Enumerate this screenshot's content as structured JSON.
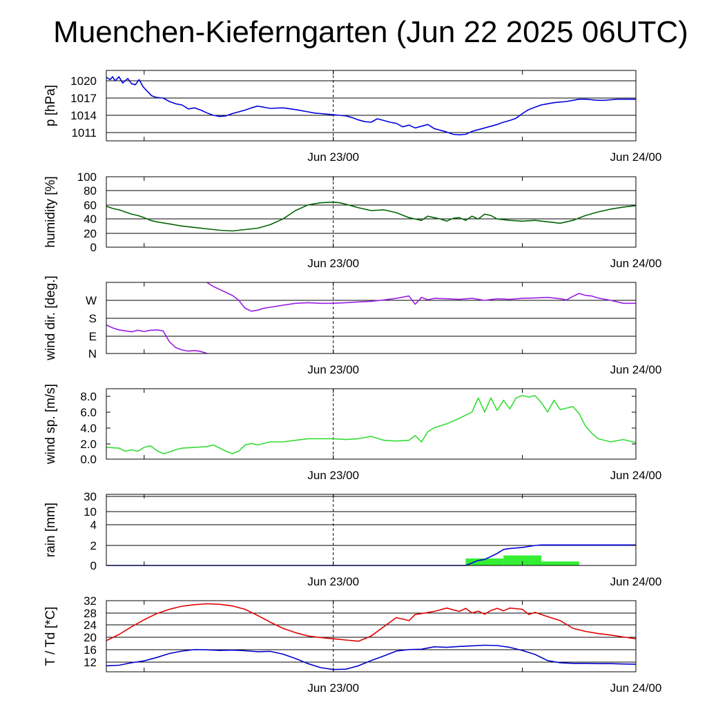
{
  "title": "Muenchen-Kieferngarten (Jun 22 2025 06UTC)",
  "colors": {
    "pressure": "#0000dd",
    "humidity": "#006400",
    "wind_dir": "#9a1ae6",
    "wind_speed": "#33dd33",
    "rain_bars": "#33ee33",
    "rain_cum": "#0000dd",
    "temp": "#e00000",
    "dewpoint": "#0000cc"
  },
  "chart_data": [
    {
      "type": "line",
      "ylabel": "p [hPa]",
      "yticks": [
        "1011",
        "1014",
        "1017",
        "1020"
      ],
      "ylim": [
        1009.6,
        1021.8
      ],
      "grid": "horizontal",
      "xticks": [
        "Jun 23/00",
        "Jun 24/00"
      ],
      "xlim_hours": [
        0,
        42
      ],
      "series": [
        {
          "x": [
            0,
            0.3,
            0.5,
            0.7,
            1,
            1.3,
            1.7,
            2,
            2.3,
            2.6,
            2.9,
            3.2,
            3.6,
            4,
            4.5,
            5,
            5.5,
            6,
            6.5,
            7,
            7.5,
            8,
            8.5,
            9,
            9.5,
            10,
            10.5,
            11,
            11.5,
            12,
            13,
            14,
            15,
            16,
            16.5,
            17,
            17.5,
            18,
            18.5,
            19,
            19.5,
            20,
            20.5,
            21,
            21.5,
            22,
            22.5,
            23,
            23.5,
            24,
            24.5,
            25,
            25.5,
            26,
            26.5,
            27,
            27.5,
            28,
            28.5,
            29,
            29.5,
            30,
            30.5,
            31,
            31.5,
            32,
            32.5,
            33,
            33.5,
            34,
            34.5,
            35,
            35.5,
            36,
            36.5,
            37,
            37.5,
            38,
            38.5,
            39,
            39.5,
            40,
            40.5,
            41,
            41.5,
            42
          ],
          "values": [
            1020.6,
            1020.2,
            1020.7,
            1020.0,
            1020.7,
            1019.6,
            1020.4,
            1019.5,
            1019.3,
            1020.2,
            1019.0,
            1018.3,
            1017.4,
            1017.1,
            1017.0,
            1016.4,
            1016.0,
            1015.8,
            1015.1,
            1015.3,
            1014.9,
            1014.4,
            1014.0,
            1013.8,
            1013.9,
            1014.3,
            1014.6,
            1014.9,
            1015.3,
            1015.6,
            1015.2,
            1015.3,
            1015.0,
            1014.6,
            1014.4,
            1014.3,
            1014.2,
            1014.1,
            1014.0,
            1013.9,
            1013.6,
            1013.2,
            1012.9,
            1012.8,
            1013.4,
            1013.1,
            1012.8,
            1012.6,
            1012.0,
            1012.3,
            1011.8,
            1012.1,
            1012.4,
            1011.7,
            1011.4,
            1011.1,
            1010.7,
            1010.6,
            1010.7,
            1011.2,
            1011.5,
            1011.8,
            1012.1,
            1012.4,
            1012.8,
            1013.1,
            1013.5,
            1014.3,
            1015.0,
            1015.4,
            1015.8,
            1016.0,
            1016.2,
            1016.3,
            1016.4,
            1016.6,
            1016.8,
            1016.8,
            1016.7,
            1016.6,
            1016.6,
            1016.7,
            1016.8,
            1016.8,
            1016.8,
            1016.8
          ]
        }
      ]
    },
    {
      "type": "line",
      "ylabel": "humidity [%]",
      "yticks": [
        "0",
        "20",
        "40",
        "60",
        "80",
        "100"
      ],
      "ylim": [
        0,
        100
      ],
      "grid": "horizontal",
      "xticks": [
        "Jun 23/00",
        "Jun 24/00"
      ],
      "xlim_hours": [
        0,
        42
      ],
      "series": [
        {
          "x": [
            0,
            0.5,
            1,
            1.5,
            2,
            2.5,
            3,
            3.5,
            4,
            5,
            6,
            7,
            8,
            9,
            10,
            11,
            12,
            13,
            14,
            15,
            16,
            17,
            18,
            18.5,
            19,
            20,
            21,
            22,
            23,
            24,
            25,
            25.5,
            26,
            26.5,
            27,
            27.5,
            28,
            28.5,
            29,
            29.5,
            30,
            30.5,
            31,
            32,
            33,
            34,
            35,
            36,
            37,
            38,
            39,
            40,
            41,
            42
          ],
          "values": [
            58,
            55,
            53,
            50,
            47,
            45,
            42,
            38,
            36,
            33,
            30,
            28,
            26,
            24,
            23,
            25,
            27,
            32,
            40,
            52,
            60,
            63,
            64,
            63,
            61,
            56,
            52,
            53,
            49,
            42,
            38,
            44,
            42,
            40,
            37,
            41,
            42,
            38,
            44,
            40,
            47,
            45,
            40,
            38,
            37,
            38,
            36,
            34,
            38,
            45,
            50,
            54,
            57,
            59
          ]
        }
      ]
    },
    {
      "type": "line",
      "ylabel": "wind dir. [deg.]",
      "yticks": [
        "N",
        "E",
        "S",
        "W"
      ],
      "ylim": [
        0,
        360
      ],
      "grid": "horizontal",
      "xticks": [
        "Jun 23/00",
        "Jun 24/00"
      ],
      "xlim_hours": [
        0,
        42
      ],
      "series": [
        {
          "x": [
            0,
            0.5,
            1,
            1.5,
            2,
            2.5,
            3,
            3.5,
            4,
            4.5,
            5,
            5.5,
            6,
            6.5,
            7,
            7.5,
            8
          ],
          "values": [
            145,
            130,
            120,
            115,
            110,
            118,
            112,
            118,
            120,
            115,
            60,
            30,
            18,
            12,
            15,
            10,
            0
          ]
        },
        {
          "x": [
            8,
            8.5,
            9,
            9.5,
            10,
            10.5,
            11,
            11.5,
            12,
            12.5,
            13,
            14,
            15,
            16,
            17,
            18,
            19,
            20,
            21,
            22,
            23,
            24,
            24.5,
            25,
            25.5,
            26,
            27,
            28,
            29,
            30,
            31,
            32,
            33,
            34,
            35,
            36,
            36.5,
            37,
            37.5,
            38,
            38.5,
            39,
            40,
            41,
            42
          ],
          "values": [
            360,
            340,
            325,
            310,
            295,
            270,
            230,
            215,
            220,
            230,
            235,
            245,
            255,
            258,
            255,
            255,
            258,
            262,
            265,
            272,
            280,
            292,
            250,
            285,
            273,
            280,
            278,
            275,
            280,
            270,
            278,
            275,
            280,
            282,
            285,
            278,
            272,
            290,
            305,
            295,
            292,
            282,
            270,
            255,
            255
          ]
        }
      ]
    },
    {
      "type": "line",
      "ylabel": "wind sp. [m/s]",
      "yticks": [
        "0.0",
        "2.0",
        "4.0",
        "6.0",
        "8.0"
      ],
      "ylim": [
        0,
        9
      ],
      "grid": "none",
      "xticks": [
        "Jun 23/00",
        "Jun 24/00"
      ],
      "xlim_hours": [
        0,
        42
      ],
      "series": [
        {
          "x": [
            0,
            1,
            1.5,
            2,
            2.5,
            3,
            3.5,
            4,
            4.5,
            5,
            5.5,
            6,
            7,
            8,
            8.5,
            9,
            9.5,
            10,
            10.5,
            11,
            11.5,
            12,
            13,
            14,
            15,
            16,
            17,
            18,
            19,
            20,
            21,
            22,
            23,
            24,
            24.5,
            25,
            25.5,
            26,
            27,
            28,
            29,
            29.5,
            30,
            30.5,
            31,
            31.5,
            32,
            32.5,
            33,
            33.5,
            34,
            34.5,
            35,
            35.5,
            36,
            36.5,
            37,
            37.5,
            38,
            38.5,
            39,
            40,
            41,
            42
          ],
          "values": [
            1.5,
            1.4,
            1.0,
            1.2,
            1.0,
            1.5,
            1.7,
            1.1,
            0.7,
            0.9,
            1.2,
            1.4,
            1.5,
            1.6,
            1.8,
            1.4,
            1.0,
            0.7,
            1.0,
            1.8,
            2.0,
            1.8,
            2.2,
            2.2,
            2.4,
            2.6,
            2.6,
            2.6,
            2.5,
            2.6,
            2.9,
            2.4,
            2.3,
            2.4,
            3.0,
            2.2,
            3.5,
            4.0,
            4.5,
            5.2,
            6.0,
            7.8,
            6.0,
            7.8,
            6.2,
            7.5,
            6.4,
            7.8,
            8.1,
            7.9,
            8.1,
            7.2,
            6.0,
            7.5,
            6.3,
            6.5,
            6.7,
            5.8,
            4.2,
            3.3,
            2.6,
            2.2,
            2.5,
            2.1
          ]
        }
      ]
    },
    {
      "type": "bar",
      "ylabel": "rain [mm]",
      "yticks": [
        "0",
        "2",
        "4",
        "10",
        "30"
      ],
      "ylim": [
        0,
        30
      ],
      "grid": "horizontal",
      "scale_note": "nonlinear",
      "xticks": [
        "Jun 23/00",
        "Jun 24/00"
      ],
      "xlim_hours": [
        0,
        42
      ],
      "bars": [
        {
          "x0": 28.5,
          "x1": 31.5,
          "value": 0.7
        },
        {
          "x0": 31.5,
          "x1": 34.5,
          "value": 1.0
        },
        {
          "x0": 34.5,
          "x1": 37.5,
          "value": 0.4
        }
      ],
      "series": [
        {
          "name": "cumulative",
          "x": [
            0,
            28.5,
            29.5,
            30,
            30.5,
            31,
            31.5,
            32,
            33,
            34,
            34.5,
            36,
            38,
            42
          ],
          "values": [
            0,
            0,
            0.5,
            0.6,
            0.9,
            1.2,
            1.6,
            1.7,
            1.8,
            2.0,
            2.05,
            2.05,
            2.05,
            2.05
          ]
        }
      ]
    },
    {
      "type": "line",
      "ylabel": "T / Td [*C]",
      "yticks": [
        "12",
        "16",
        "20",
        "24",
        "28",
        "32"
      ],
      "ylim": [
        9,
        33
      ],
      "grid": "horizontal",
      "xticks": [
        "Jun 23/00",
        "Jun 24/00"
      ],
      "xlim_hours": [
        0,
        42
      ],
      "series": [
        {
          "x": [
            0,
            1,
            2,
            3,
            4,
            5,
            6,
            7,
            8,
            9,
            10,
            11,
            12,
            13,
            14,
            15,
            16,
            17,
            18,
            19,
            20,
            21,
            22,
            23,
            24,
            24.5,
            25,
            26,
            27,
            28,
            28.5,
            29,
            29.5,
            30,
            30.5,
            31,
            31.5,
            32,
            33,
            33.5,
            34,
            35,
            36,
            37,
            38,
            39,
            40,
            41,
            42
          ],
          "values": [
            19,
            21,
            23.5,
            25.8,
            27.8,
            29.2,
            30.2,
            30.7,
            31.0,
            30.8,
            30.3,
            29.2,
            27.2,
            25.0,
            23.0,
            21.6,
            20.5,
            20.0,
            19.6,
            19.2,
            18.8,
            20.5,
            23.5,
            26.5,
            25.5,
            27.5,
            27.8,
            28.5,
            29.6,
            28.5,
            29.5,
            28.0,
            28.6,
            27.6,
            28.8,
            29.5,
            28.7,
            29.6,
            29.2,
            27.5,
            28.2,
            26.8,
            25.5,
            23.0,
            22.0,
            21.3,
            20.8,
            20.2,
            19.6
          ]
        },
        {
          "x": [
            0,
            1,
            2,
            3,
            4,
            5,
            6,
            7,
            8,
            9,
            10,
            11,
            12,
            13,
            14,
            15,
            16,
            17,
            18,
            19,
            20,
            21,
            22,
            23,
            24,
            25,
            26,
            27,
            28,
            29,
            30,
            31,
            32,
            33,
            34,
            35,
            36,
            37,
            38,
            39,
            40,
            41,
            42
          ],
          "values": [
            10.8,
            11.0,
            11.8,
            12.4,
            13.5,
            14.8,
            15.6,
            16.1,
            16.0,
            15.8,
            15.9,
            15.7,
            15.4,
            15.5,
            14.6,
            13.2,
            11.5,
            10.2,
            9.6,
            9.7,
            10.8,
            12.5,
            14.0,
            15.6,
            16.1,
            16.2,
            17.0,
            16.8,
            17.1,
            17.3,
            17.5,
            17.4,
            16.8,
            15.8,
            14.5,
            12.5,
            11.8,
            11.6,
            11.6,
            11.5,
            11.5,
            11.4,
            11.3
          ]
        }
      ]
    }
  ]
}
